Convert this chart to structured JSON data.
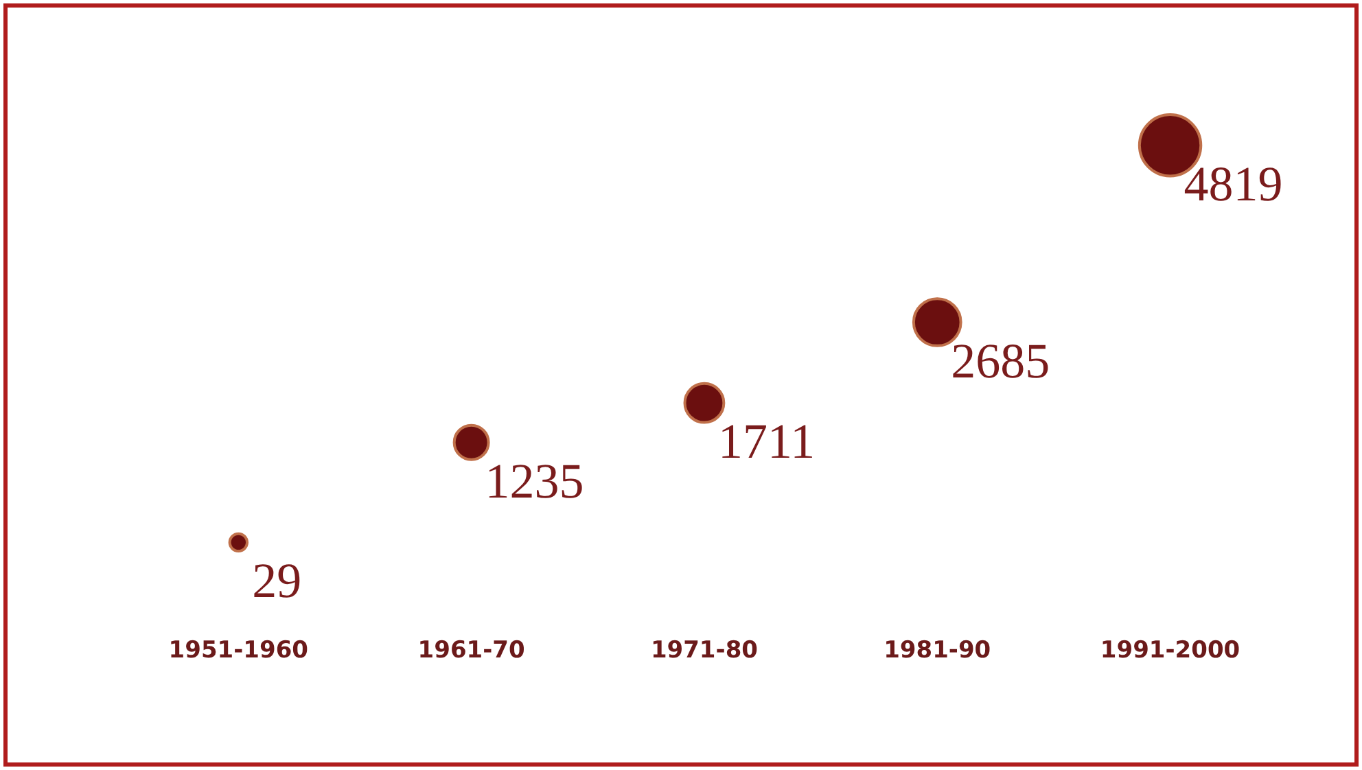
{
  "chart_data": {
    "type": "other",
    "categories": [
      "1951-1960",
      "1961-70",
      "1971-80",
      "1981-90",
      "1991-2000"
    ],
    "values": [
      29,
      1235,
      1711,
      2685,
      4819
    ],
    "color": "#6b0f0f",
    "data_labels": true
  }
}
